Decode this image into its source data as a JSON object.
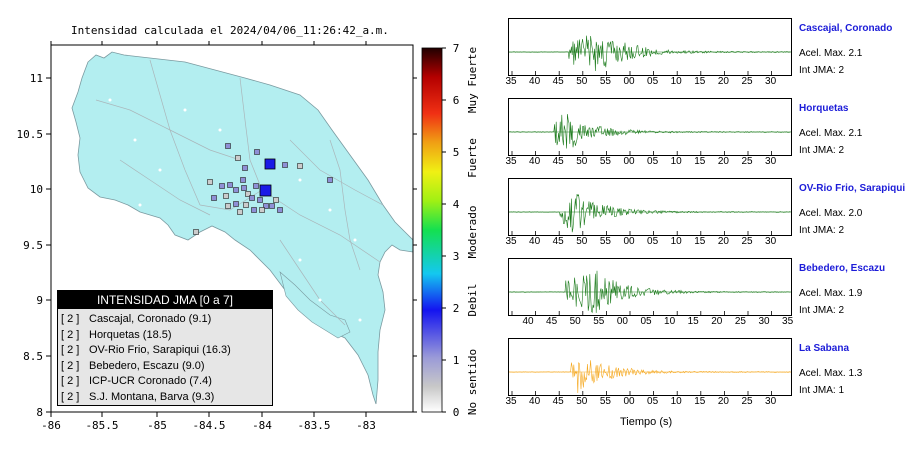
{
  "map": {
    "title": "Intensidad calculada el 2024/04/06_11:26:42_a.m.",
    "x_ticks": [
      "-86",
      "-85.5",
      "-85",
      "-84.5",
      "-84",
      "-83.5",
      "-83"
    ],
    "y_ticks": [
      "11",
      "10.5",
      "10",
      "9.5",
      "9",
      "8.5",
      "8"
    ],
    "land_color": "#b3eef0",
    "epicenter_color": "#1a1ae6",
    "colors": {
      "weak_station": "#8f8fd6",
      "light_station": "#cccccc"
    }
  },
  "colorbar": {
    "ticks": [
      "0",
      "1",
      "2",
      "3",
      "4",
      "5",
      "6",
      "7"
    ],
    "labels": [
      "No sentido",
      "Debil",
      "Moderado",
      "Fuerte",
      "Muy Fuerte"
    ]
  },
  "legend": {
    "title": "INTENSIDAD JMA [0 a 7]",
    "items": [
      {
        "level": "[ 2 ]",
        "station": "Cascajal, Coronado (9.1)"
      },
      {
        "level": "[ 2 ]",
        "station": "Horquetas (18.5)"
      },
      {
        "level": "[ 2 ]",
        "station": "OV-Rio Frio, Sarapiqui (16.3)"
      },
      {
        "level": "[ 2 ]",
        "station": "Bebedero, Escazu (9.0)"
      },
      {
        "level": "[ 2 ]",
        "station": "ICP-UCR Coronado (7.4)"
      },
      {
        "level": "[ 2 ]",
        "station": "S.J. Montana, Barva (9.3)"
      }
    ]
  },
  "waveforms": {
    "xlabel": "Tiempo (s)",
    "panels": [
      {
        "station": "Cascajal, Coronado",
        "accel": "Acel. Max. 2.1",
        "jma": "Int JMA: 2",
        "ticks": [
          "35",
          "40",
          "45",
          "50",
          "55",
          "00",
          "05",
          "10",
          "15",
          "20",
          "25",
          "30"
        ],
        "color": "#1a7a1a",
        "onset": 0.21,
        "peak": 0.33
      },
      {
        "station": "Horquetas",
        "accel": "Acel. Max. 2.1",
        "jma": "Int JMA: 2",
        "ticks": [
          "35",
          "40",
          "45",
          "50",
          "55",
          "00",
          "05",
          "10",
          "15",
          "20",
          "25",
          "30"
        ],
        "color": "#1a7a1a",
        "onset": 0.16,
        "peak": 0.19
      },
      {
        "station": "OV-Rio Frio, Sarapiqui",
        "accel": "Acel. Max. 2.0",
        "jma": "Int JMA: 2",
        "ticks": [
          "35",
          "40",
          "45",
          "50",
          "55",
          "00",
          "05",
          "10",
          "15",
          "20",
          "25",
          "30"
        ],
        "color": "#1a7a1a",
        "onset": 0.18,
        "peak": 0.22
      },
      {
        "station": "Bebedero, Escazu",
        "accel": "Acel. Max. 1.9",
        "jma": "Int JMA: 2",
        "ticks": [
          "40",
          "45",
          "50",
          "55",
          "00",
          "05",
          "10",
          "15",
          "20",
          "25",
          "30",
          "35"
        ],
        "color": "#1a7a1a",
        "onset": 0.2,
        "peak": 0.31
      },
      {
        "station": "La Sabana",
        "accel": "Acel. Max. 1.3",
        "jma": "Int JMA: 1",
        "ticks": [
          "35",
          "40",
          "45",
          "50",
          "55",
          "00",
          "05",
          "10",
          "15",
          "20",
          "25",
          "30"
        ],
        "color": "#f5a81f",
        "onset": 0.22,
        "peak": 0.24
      }
    ]
  }
}
